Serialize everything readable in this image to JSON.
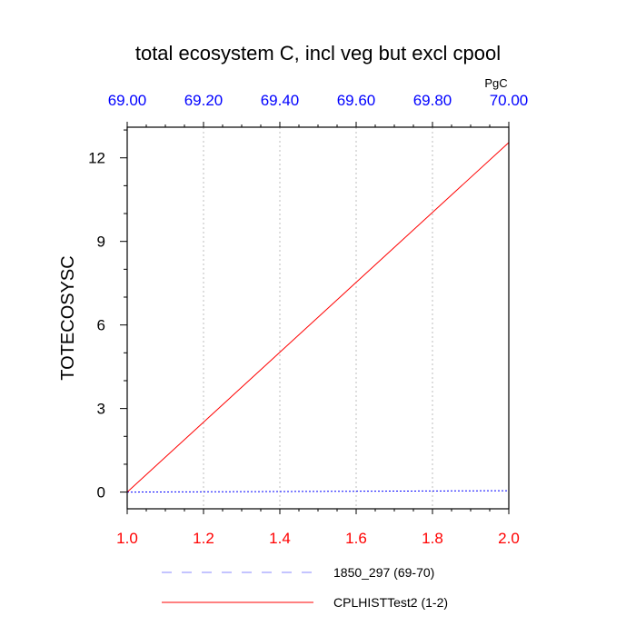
{
  "chart_data": {
    "type": "line",
    "title": "total ecosystem C, incl veg but excl cpool",
    "ylabel": "TOTECOSYSC",
    "top_axis": {
      "units": "PgC",
      "range": [
        69.0,
        70.0
      ],
      "ticks": [
        "69.00",
        "69.20",
        "69.40",
        "69.60",
        "69.80",
        "70.00"
      ],
      "color": "#0000ff"
    },
    "bottom_axis": {
      "range": [
        1.0,
        2.0
      ],
      "ticks": [
        "1.0",
        "1.2",
        "1.4",
        "1.6",
        "1.8",
        "2.0"
      ],
      "color": "#ff0000"
    },
    "y_axis": {
      "range": [
        -0.6,
        13.1
      ],
      "ticks": [
        "0",
        "3",
        "6",
        "9",
        "12"
      ],
      "tick_values": [
        0,
        3,
        6,
        9,
        12
      ],
      "minor_step": 1
    },
    "grid": "vertical dotted",
    "series": [
      {
        "name": "1850_297 (69-70)",
        "axis": "top",
        "x": [
          69.0,
          70.0
        ],
        "y": [
          0.0,
          0.05
        ],
        "color": "#0000ff",
        "legend_color": "#8888ff",
        "dash": "dashed"
      },
      {
        "name": "CPLHISTTest2 (1-2)",
        "axis": "bottom",
        "x": [
          1.0,
          2.0
        ],
        "y": [
          0.0,
          12.55
        ],
        "color": "#ff0000",
        "legend_color": "#ff0000",
        "dash": "solid"
      }
    ],
    "legend": "below"
  }
}
